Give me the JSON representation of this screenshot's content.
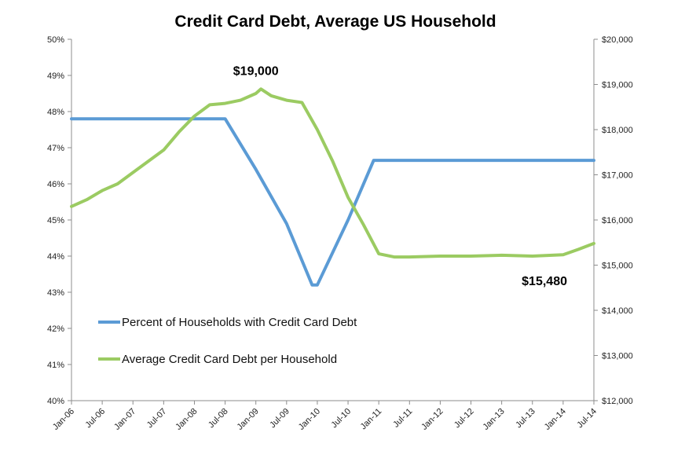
{
  "chart_data": {
    "type": "line",
    "title": "Credit Card Debt, Average US Household",
    "grid": false,
    "legend_position": "bottom-left",
    "x_range": [
      "2006-01",
      "2014-07"
    ],
    "x_tick_labels": [
      "Jan-06",
      "Jul-06",
      "Jan-07",
      "Jul-07",
      "Jan-08",
      "Jul-08",
      "Jan-09",
      "Jul-09",
      "Jan-10",
      "Jul-10",
      "Jan-11",
      "Jul-11",
      "Jan-12",
      "Jul-12",
      "Jan-13",
      "Jul-13",
      "Jan-14",
      "Jul-14"
    ],
    "y_left": {
      "range": [
        40,
        50
      ],
      "tick_labels": [
        "40%",
        "41%",
        "42%",
        "43%",
        "44%",
        "45%",
        "46%",
        "47%",
        "48%",
        "49%",
        "50%"
      ]
    },
    "y_right": {
      "range": [
        12000,
        20000
      ],
      "tick_labels": [
        "$12,000",
        "$13,000",
        "$14,000",
        "$15,000",
        "$16,000",
        "$17,000",
        "$18,000",
        "$19,000",
        "$20,000"
      ]
    },
    "series": [
      {
        "name": "Percent of Households with Credit Card Debt",
        "axis": "left",
        "color": "#5b9bd5",
        "points": [
          [
            "2006-01",
            47.8
          ],
          [
            "2008-07",
            47.8
          ],
          [
            "2009-01",
            46.4
          ],
          [
            "2009-07",
            44.9
          ],
          [
            "2009-12",
            43.2
          ],
          [
            "2010-01",
            43.2
          ],
          [
            "2010-07",
            45.0
          ],
          [
            "2010-12",
            46.65
          ],
          [
            "2014-07",
            46.65
          ]
        ]
      },
      {
        "name": "Average Credit Card Debt per Household",
        "axis": "right",
        "color": "#9bcb62",
        "points": [
          [
            "2006-01",
            16300
          ],
          [
            "2006-04",
            16450
          ],
          [
            "2006-07",
            16650
          ],
          [
            "2006-10",
            16800
          ],
          [
            "2007-01",
            17050
          ],
          [
            "2007-04",
            17300
          ],
          [
            "2007-07",
            17550
          ],
          [
            "2007-10",
            17950
          ],
          [
            "2008-01",
            18300
          ],
          [
            "2008-04",
            18550
          ],
          [
            "2008-07",
            18580
          ],
          [
            "2008-10",
            18650
          ],
          [
            "2009-01",
            18800
          ],
          [
            "2009-02",
            18900
          ],
          [
            "2009-04",
            18750
          ],
          [
            "2009-07",
            18650
          ],
          [
            "2009-10",
            18600
          ],
          [
            "2010-01",
            18000
          ],
          [
            "2010-04",
            17300
          ],
          [
            "2010-07",
            16500
          ],
          [
            "2010-10",
            15900
          ],
          [
            "2011-01",
            15250
          ],
          [
            "2011-04",
            15180
          ],
          [
            "2011-07",
            15180
          ],
          [
            "2012-01",
            15200
          ],
          [
            "2012-07",
            15200
          ],
          [
            "2013-01",
            15220
          ],
          [
            "2013-07",
            15200
          ],
          [
            "2014-01",
            15230
          ],
          [
            "2014-04",
            15350
          ],
          [
            "2014-07",
            15480
          ]
        ]
      }
    ],
    "annotations": [
      {
        "text": "$19,000",
        "x": "2009-01",
        "y": 19000,
        "axis": "right"
      },
      {
        "text": "$15,480",
        "x": "2014-07",
        "y": 15480,
        "axis": "right"
      }
    ]
  }
}
